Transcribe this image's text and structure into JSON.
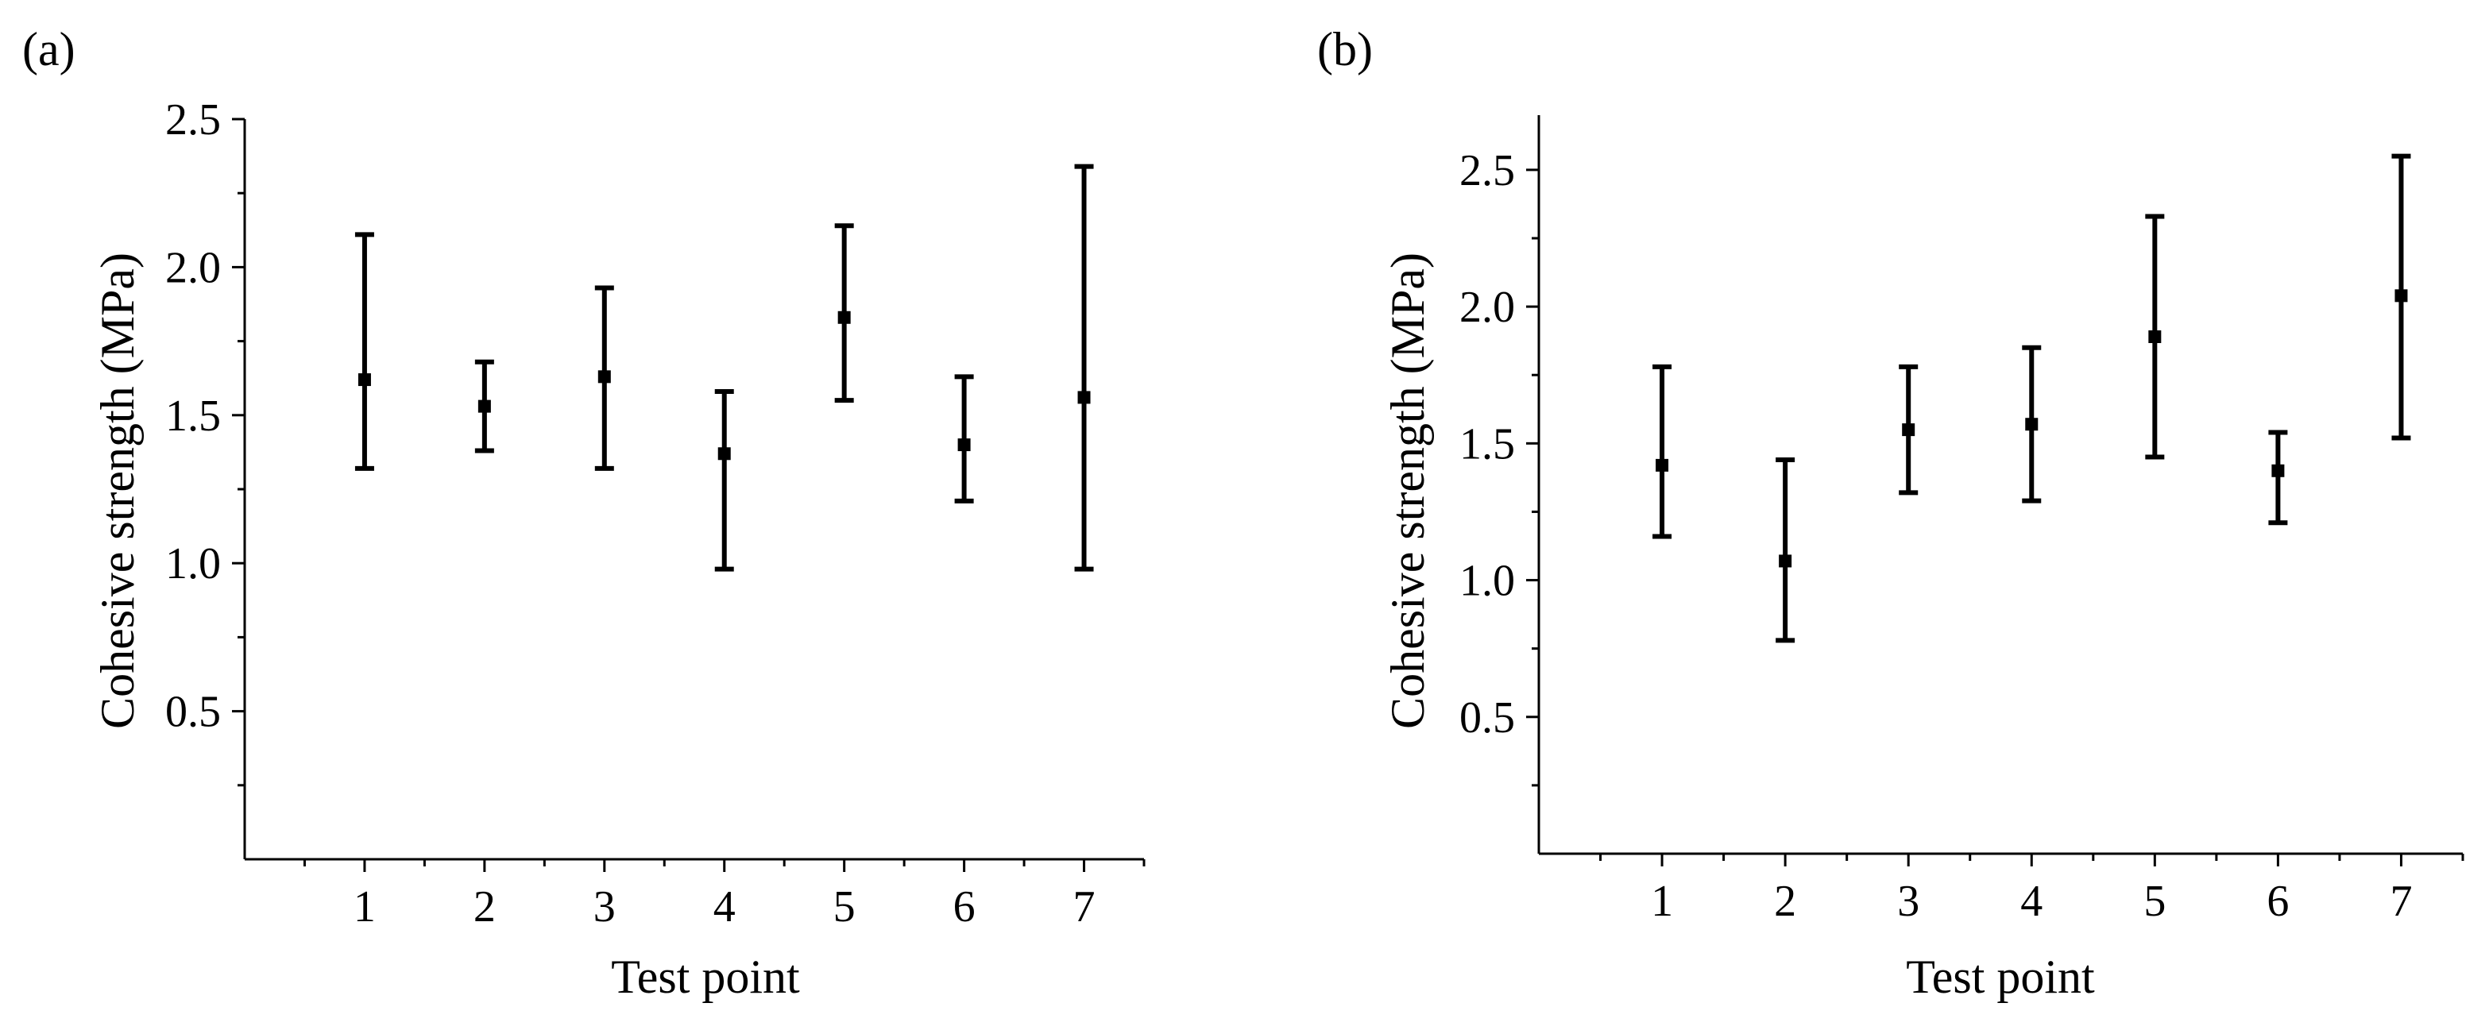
{
  "figure": {
    "panels": [
      "(a)",
      "(b)"
    ]
  },
  "chart_data": [
    {
      "type": "scatter",
      "panel_label": "(a)",
      "xlabel": "Test point",
      "ylabel": "Cohesive strength (MPa)",
      "x": [
        1,
        2,
        3,
        4,
        5,
        6,
        7
      ],
      "xticks": [
        "1",
        "2",
        "3",
        "4",
        "5",
        "6",
        "7"
      ],
      "xlim": [
        0,
        7.5
      ],
      "ylim": [
        0,
        2.5
      ],
      "yticks": [
        "0.5",
        "1.0",
        "1.5",
        "2.0",
        "2.5"
      ],
      "series": [
        {
          "values": [
            1.62,
            1.53,
            1.63,
            1.37,
            1.83,
            1.4,
            1.56
          ],
          "error_low": [
            1.32,
            1.38,
            1.32,
            0.98,
            1.55,
            1.21,
            0.98
          ],
          "error_high": [
            2.11,
            1.68,
            1.93,
            1.58,
            2.14,
            1.63,
            2.34
          ]
        }
      ],
      "marker": "square",
      "color": "#000000",
      "grid": false,
      "legend": "none"
    },
    {
      "type": "scatter",
      "panel_label": "(b)",
      "xlabel": "Test point",
      "ylabel": "Cohesive strength (MPa)",
      "x": [
        1,
        2,
        3,
        4,
        5,
        6,
        7
      ],
      "xticks": [
        "1",
        "2",
        "3",
        "4",
        "5",
        "6",
        "7"
      ],
      "xlim": [
        0,
        7.5
      ],
      "ylim": [
        0,
        2.7
      ],
      "yticks": [
        "0.5",
        "1.0",
        "1.5",
        "2.0",
        "2.5"
      ],
      "series": [
        {
          "values": [
            1.42,
            1.07,
            1.55,
            1.57,
            1.89,
            1.4,
            2.04
          ],
          "error_low": [
            1.16,
            0.78,
            1.32,
            1.29,
            1.45,
            1.21,
            1.52
          ],
          "error_high": [
            1.78,
            1.44,
            1.78,
            1.85,
            2.33,
            1.54,
            2.55
          ]
        }
      ],
      "marker": "square",
      "color": "#000000",
      "grid": false,
      "legend": "none"
    }
  ]
}
